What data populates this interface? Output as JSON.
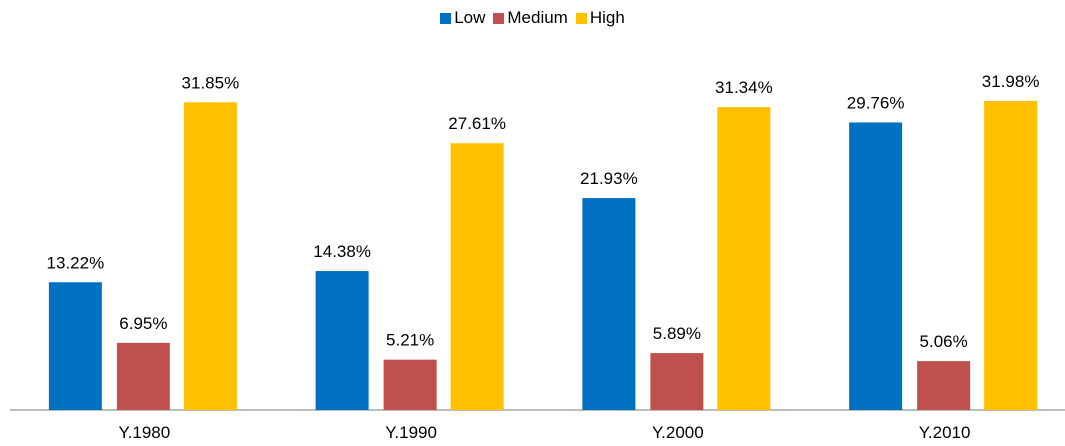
{
  "chart_data": {
    "type": "bar",
    "categories": [
      "Y.1980",
      "Y.1990",
      "Y.2000",
      "Y.2010"
    ],
    "series": [
      {
        "name": "Low",
        "color": "#0070c0",
        "values": [
          13.22,
          14.38,
          21.93,
          29.76
        ],
        "value_labels": [
          "13.22%",
          "14.38%",
          "21.93%",
          "29.76%"
        ]
      },
      {
        "name": "Medium",
        "color": "#c0504d",
        "values": [
          6.95,
          5.21,
          5.89,
          5.06
        ],
        "value_labels": [
          "6.95%",
          "5.21%",
          "5.89%",
          "5.06%"
        ]
      },
      {
        "name": "High",
        "color": "#ffc000",
        "values": [
          31.85,
          27.61,
          31.34,
          31.98
        ],
        "value_labels": [
          "31.85%",
          "27.61%",
          "31.34%",
          "31.98%"
        ]
      }
    ],
    "legend": "top"
  }
}
